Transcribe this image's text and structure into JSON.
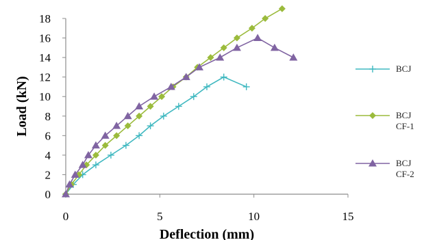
{
  "chart_data": {
    "type": "line",
    "title": "",
    "xlabel": "Deflection (mm)",
    "ylabel": "Load (kN)",
    "xlim": [
      0,
      15
    ],
    "ylim": [
      0,
      18
    ],
    "xticks": [
      0,
      5,
      10,
      15
    ],
    "yticks": [
      0,
      2,
      4,
      6,
      8,
      10,
      12,
      14,
      16,
      18
    ],
    "grid": false,
    "legend_position": "right",
    "series": [
      {
        "name": "BCJ",
        "color": "#3fb8c0",
        "marker": "plus",
        "x": [
          0,
          0.4,
          0.9,
          1.6,
          2.4,
          3.2,
          3.9,
          4.5,
          5.2,
          6.0,
          6.8,
          7.5,
          8.4,
          9.6
        ],
        "y": [
          0,
          1,
          2,
          3,
          4,
          5,
          6,
          7,
          8,
          9,
          10,
          11,
          12,
          11
        ]
      },
      {
        "name": "BCJ CF-1",
        "color": "#9bbb3c",
        "marker": "diamond",
        "x": [
          0,
          0.3,
          0.7,
          1.1,
          1.6,
          2.1,
          2.7,
          3.3,
          3.9,
          4.5,
          5.1,
          5.7,
          6.4,
          7.0,
          7.7,
          8.4,
          9.1,
          9.9,
          10.6,
          11.5
        ],
        "y": [
          0,
          1,
          2,
          3,
          4,
          5,
          6,
          7,
          8,
          9,
          10,
          11,
          12,
          13,
          14,
          15,
          16,
          17,
          18,
          19
        ]
      },
      {
        "name": "BCJ CF-2",
        "color": "#8064a2",
        "marker": "triangle",
        "x": [
          0,
          0.2,
          0.5,
          0.9,
          1.2,
          1.6,
          2.1,
          2.7,
          3.3,
          3.9,
          4.7,
          5.6,
          6.4,
          7.1,
          8.2,
          9.1,
          10.2,
          11.1,
          12.1
        ],
        "y": [
          0,
          1,
          2,
          3,
          4,
          5,
          6,
          7,
          8,
          9,
          10,
          11,
          12,
          13,
          14,
          15,
          16,
          15,
          14
        ]
      }
    ]
  }
}
